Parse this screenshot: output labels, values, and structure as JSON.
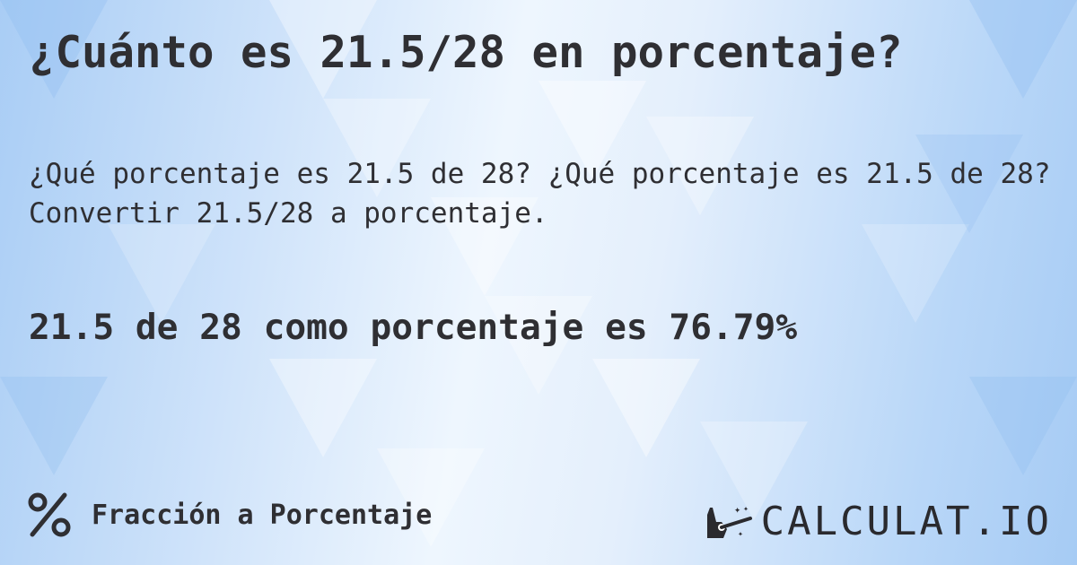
{
  "title": "¿Cuánto es 21.5/28 en porcentaje?",
  "subtitle": "¿Qué porcentaje es 21.5 de 28? ¿Qué porcentaje es 21.5 de 28? Convertir 21.5/28 a porcentaje.",
  "result": "21.5 de 28 como porcentaje es 76.79%",
  "footer": {
    "category_icon": "percent-icon",
    "category_label": "Fracción a Porcentaje"
  },
  "logo": {
    "text": "CALCULAT.IO",
    "icon": "magic-hand-icon"
  },
  "colors": {
    "text": "#2f2f33",
    "background": "#cfe3fa"
  }
}
